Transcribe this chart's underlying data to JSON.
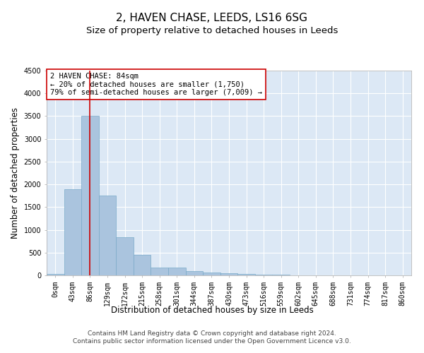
{
  "title": "2, HAVEN CHASE, LEEDS, LS16 6SG",
  "subtitle": "Size of property relative to detached houses in Leeds",
  "xlabel": "Distribution of detached houses by size in Leeds",
  "ylabel": "Number of detached properties",
  "footer_line1": "Contains HM Land Registry data © Crown copyright and database right 2024.",
  "footer_line2": "Contains public sector information licensed under the Open Government Licence v3.0.",
  "annotation_line1": "2 HAVEN CHASE: 84sqm",
  "annotation_line2": "← 20% of detached houses are smaller (1,750)",
  "annotation_line3": "79% of semi-detached houses are larger (7,009) →",
  "bar_labels": [
    "0sqm",
    "43sqm",
    "86sqm",
    "129sqm",
    "172sqm",
    "215sqm",
    "258sqm",
    "301sqm",
    "344sqm",
    "387sqm",
    "430sqm",
    "473sqm",
    "516sqm",
    "559sqm",
    "602sqm",
    "645sqm",
    "688sqm",
    "731sqm",
    "774sqm",
    "817sqm",
    "860sqm"
  ],
  "bar_values": [
    30,
    1900,
    3500,
    1760,
    840,
    450,
    175,
    165,
    90,
    55,
    45,
    30,
    20,
    10,
    5,
    3,
    2,
    1,
    1,
    0,
    0
  ],
  "bar_color": "#aac4de",
  "bar_edge_color": "#7aaac8",
  "vline_x": 2,
  "vline_color": "#cc0000",
  "annotation_box_color": "#cc0000",
  "ylim": [
    0,
    4500
  ],
  "yticks": [
    0,
    500,
    1000,
    1500,
    2000,
    2500,
    3000,
    3500,
    4000,
    4500
  ],
  "bg_color": "#dce8f5",
  "grid_color": "#ffffff",
  "title_fontsize": 11,
  "subtitle_fontsize": 9.5,
  "axis_label_fontsize": 8.5,
  "tick_fontsize": 7,
  "annotation_fontsize": 7.5,
  "footer_fontsize": 6.5
}
